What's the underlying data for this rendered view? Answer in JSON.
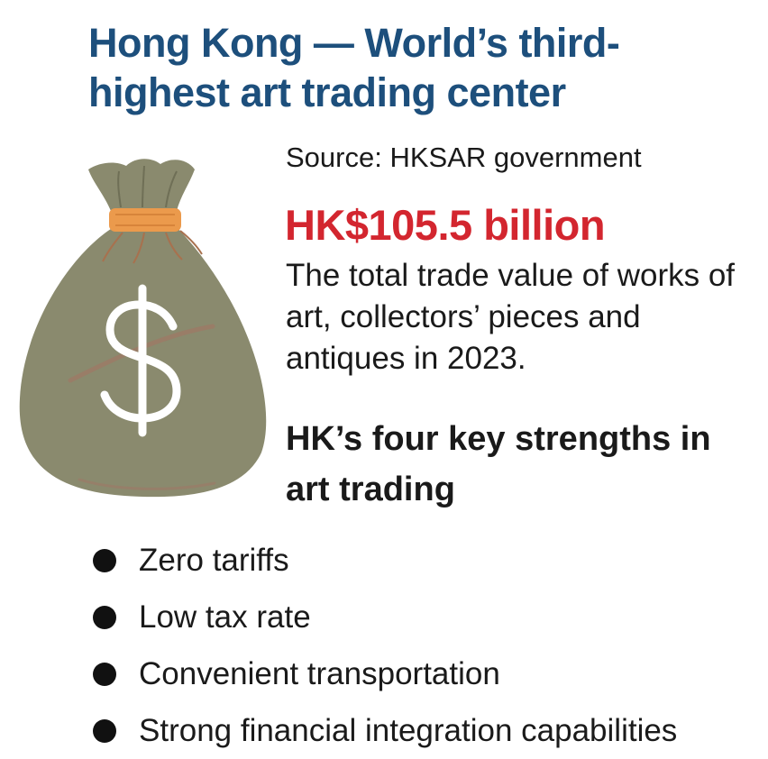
{
  "title": "Hong Kong — World’s third-highest art trading center",
  "source": "Source: HKSAR government",
  "stat": {
    "value": "HK$105.5 billion",
    "description": "The total trade value of works of art, collectors’ pieces and antiques in 2023."
  },
  "subheading": "HK’s four key strengths in art trading",
  "strengths": [
    "Zero tariffs",
    "Low tax rate",
    "Convenient transportation",
    "Strong financial integration capabilities"
  ],
  "illustration": {
    "icon": "money-bag-icon",
    "symbol": "$",
    "colors": {
      "bag": "#8a8a6e",
      "bag_shadow": "#75755b",
      "tie": "#eb9a4c",
      "symbol": "#ffffff",
      "strap": "#a8714e"
    }
  },
  "colors": {
    "title": "#1d4f7c",
    "stat_value": "#d3262f",
    "text": "#1a1a1a"
  }
}
